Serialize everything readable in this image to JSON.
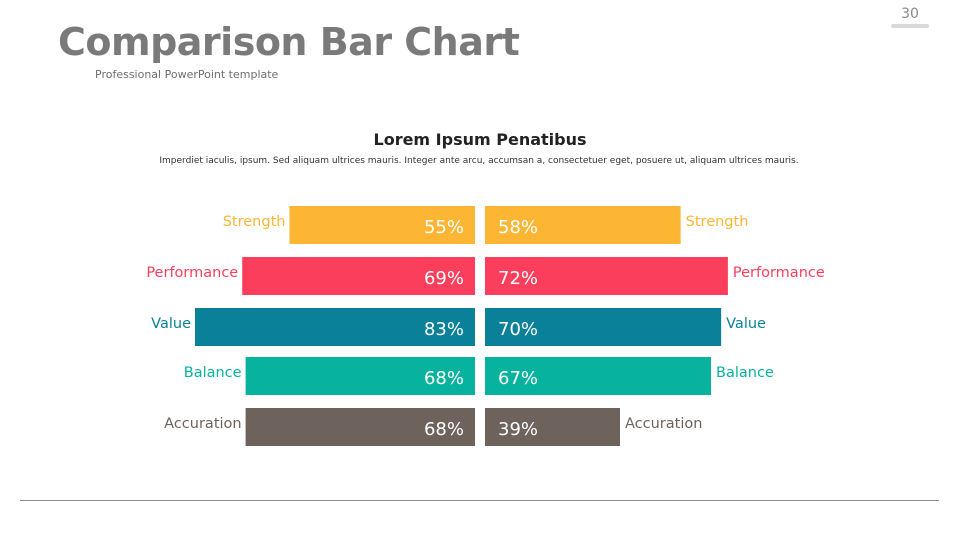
{
  "slide": {
    "page_number": "30",
    "title": "Comparison Bar Chart",
    "subtitle": "Professional PowerPoint template"
  },
  "chart_data": {
    "type": "bar",
    "orientation": "horizontal-diverging",
    "title": "Lorem Ipsum Penatibus",
    "description": "Imperdiet iaculis, ipsum. Sed aliquam ultrices mauris. Integer ante arcu, accumsan a, consectetuer eget, posuere ut, aliquam ultrices mauris.",
    "categories": [
      "Strength",
      "Performance",
      "Value",
      "Balance",
      "Accuration"
    ],
    "colors": [
      "#FDB634",
      "#FB3E5C",
      "#0B8199",
      "#07B39E",
      "#6E625C"
    ],
    "series": [
      {
        "side": "left",
        "values": [
          55,
          69,
          83,
          68,
          68
        ]
      },
      {
        "side": "right",
        "values": [
          58,
          72,
          70,
          67,
          39
        ]
      }
    ],
    "value_suffix": "%"
  }
}
